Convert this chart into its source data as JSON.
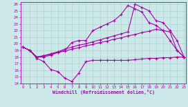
{
  "xlabel": "Windchill (Refroidissement éolien,°C)",
  "xlim_min": 0,
  "xlim_max": 23,
  "ylim_min": 14,
  "ylim_max": 26,
  "xticks": [
    0,
    1,
    2,
    3,
    4,
    5,
    6,
    7,
    8,
    9,
    10,
    11,
    12,
    13,
    14,
    15,
    16,
    17,
    18,
    19,
    20,
    21,
    22,
    23
  ],
  "yticks": [
    14,
    15,
    16,
    17,
    18,
    19,
    20,
    21,
    22,
    23,
    24,
    25,
    26
  ],
  "bg_color": "#cce8e8",
  "line_color": "#aa00aa",
  "grid_color": "#aacccc",
  "lines": [
    [
      19.5,
      19.0,
      17.8,
      17.3,
      16.1,
      15.8,
      14.8,
      14.3,
      15.6,
      17.3,
      17.5,
      17.5,
      17.5,
      17.5,
      17.5,
      17.5,
      17.6,
      17.7,
      17.8,
      17.8,
      17.9,
      17.9,
      18.0,
      18.0
    ],
    [
      19.5,
      19.0,
      18.0,
      18.0,
      18.3,
      18.7,
      19.0,
      20.2,
      20.5,
      20.5,
      22.0,
      22.5,
      23.0,
      23.5,
      24.4,
      25.8,
      25.3,
      24.8,
      23.2,
      22.8,
      22.0,
      20.5,
      19.0,
      18.0
    ],
    [
      19.5,
      19.0,
      18.0,
      18.2,
      18.5,
      18.8,
      19.2,
      19.5,
      19.8,
      20.0,
      20.3,
      20.6,
      20.9,
      21.2,
      21.5,
      21.8,
      26.0,
      25.5,
      25.0,
      23.5,
      23.2,
      22.0,
      20.5,
      18.0
    ],
    [
      19.5,
      19.0,
      18.0,
      18.2,
      18.4,
      18.7,
      18.9,
      19.2,
      19.4,
      19.7,
      19.9,
      20.2,
      20.4,
      20.7,
      20.9,
      21.2,
      21.4,
      21.7,
      21.9,
      22.2,
      22.0,
      21.8,
      19.0,
      18.0
    ]
  ]
}
